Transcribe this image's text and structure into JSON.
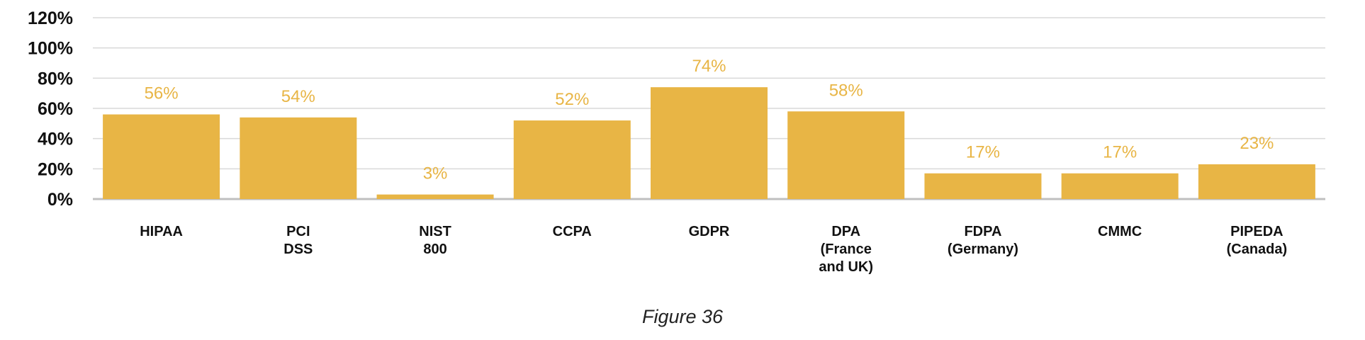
{
  "chart_data": {
    "type": "bar",
    "categories": [
      [
        "HIPAA"
      ],
      [
        "PCI",
        "DSS"
      ],
      [
        "NIST",
        "800"
      ],
      [
        "CCPA"
      ],
      [
        "GDPR"
      ],
      [
        "DPA",
        "(France",
        "and UK)"
      ],
      [
        "FDPA",
        "(Germany)"
      ],
      [
        "CMMC"
      ],
      [
        "PIPEDA",
        "(Canada)"
      ]
    ],
    "values": [
      56,
      54,
      3,
      52,
      74,
      58,
      17,
      17,
      23
    ],
    "data_labels": [
      "56%",
      "54%",
      "3%",
      "52%",
      "74%",
      "58%",
      "17%",
      "17%",
      "23%"
    ],
    "y_ticks": [
      "0%",
      "20%",
      "40%",
      "60%",
      "80%",
      "100%",
      "120%"
    ],
    "ylim": [
      0,
      120
    ],
    "grid": true,
    "bar_color": "#e8b545",
    "label_color": "#e8b545",
    "gridline_color": "#d9d9d9",
    "axis_color": "#bfbfbf"
  },
  "caption": "Figure 36"
}
